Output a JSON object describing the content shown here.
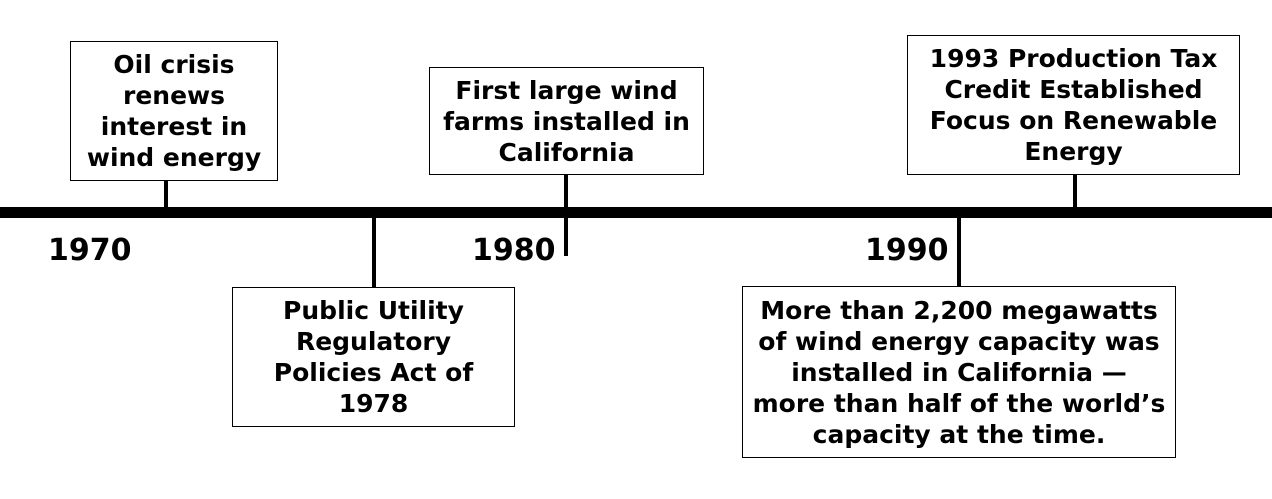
{
  "years": {
    "y1970": "1970",
    "y1980": "1980",
    "y1990": "1990"
  },
  "events": {
    "oil_crisis": "Oil crisis renews interest in wind energy",
    "purpa": "Public Utility Regulatory Policies Act of 1978",
    "wind_farms": "First large wind farms installed in California",
    "capacity": "More than 2,200 megawatts of wind energy capacity was installed in California — more than half of the world’s capacity at the time.",
    "ptc": "1993 Production Tax Credit Established Focus on Renewable Energy"
  }
}
